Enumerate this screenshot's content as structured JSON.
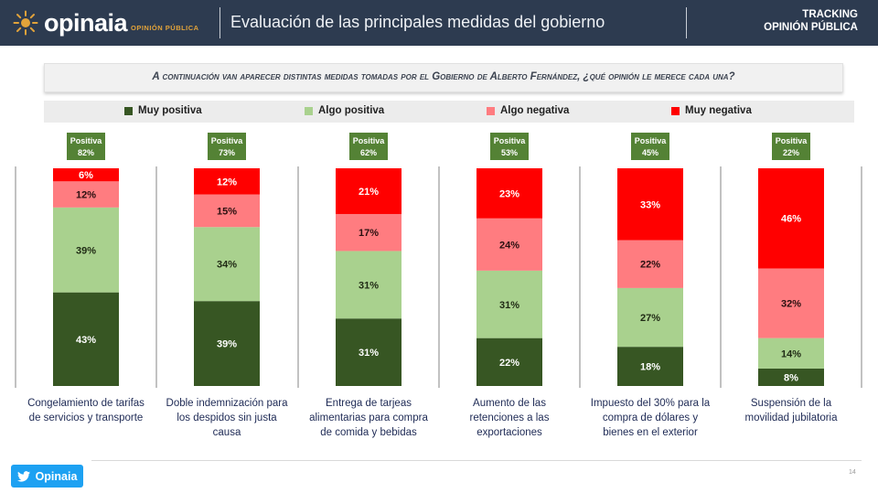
{
  "header": {
    "logo_text": "opinaia",
    "logo_subtext": "OPINIÓN PÚBLICA",
    "title": "Evaluación de las principales medidas del gobierno",
    "tracking_line1": "TRACKING",
    "tracking_line2": "OPINIÓN PÚBLICA"
  },
  "question": "A continuación van aparecer distintas medidas tomadas por el Gobierno de Alberto Fernández, ¿qué opinión le merece cada una?",
  "colors": {
    "muy_positiva": "#375623",
    "algo_positiva": "#a9d18e",
    "algo_negativa": "#ff7c80",
    "muy_negativa": "#ff0000",
    "badge": "#548235",
    "header": "#2d3b50",
    "twitter": "#1da1f2"
  },
  "chart_data": {
    "type": "bar",
    "stacked": true,
    "percent_scale": [
      0,
      100
    ],
    "series": [
      {
        "name": "Muy positiva",
        "values": [
          43,
          39,
          31,
          22,
          18,
          8
        ]
      },
      {
        "name": "Algo positiva",
        "values": [
          39,
          34,
          31,
          31,
          27,
          14
        ]
      },
      {
        "name": "Algo negativa",
        "values": [
          12,
          15,
          17,
          24,
          22,
          32
        ]
      },
      {
        "name": "Muy negativa",
        "values": [
          6,
          12,
          21,
          23,
          33,
          46
        ]
      }
    ],
    "categories": [
      "Congelamiento de tarifas de servicios y transporte",
      "Doble indemnización para los despidos sin justa causa",
      "Entrega de tarjeas alimentarias para compra de comida y bebidas",
      "Aumento de las retenciones a las exportaciones",
      "Impuesto del 30% para la compra de dólares y bienes en el exterior",
      "Suspensión de la movilidad jubilatoria"
    ],
    "category_lines": [
      [
        "Congelamiento de tarifas",
        "de servicios y transporte"
      ],
      [
        "Doble indemnización para",
        "los despidos sin justa",
        "causa"
      ],
      [
        "Entrega de tarjeas",
        "alimentarias para compra",
        "de comida y bebidas"
      ],
      [
        "Aumento de las",
        "retenciones a las",
        "exportaciones"
      ],
      [
        "Impuesto del 30% para la",
        "compra de dólares y",
        "bienes en el exterior"
      ],
      [
        "Suspensión de la",
        "movilidad jubilatoria"
      ]
    ],
    "badge_label": "Positiva",
    "badge_values": [
      "82%",
      "73%",
      "62%",
      "53%",
      "45%",
      "22%"
    ],
    "legend_position": "top"
  },
  "footer": {
    "twitter_label": "Opinaia",
    "page_number": "14"
  }
}
